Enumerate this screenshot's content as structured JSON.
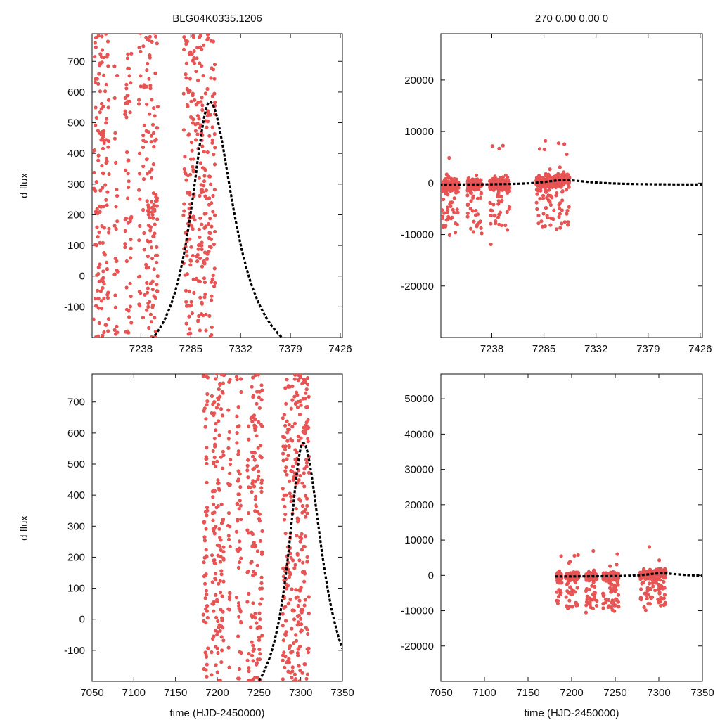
{
  "figure": {
    "title_left": "BLG04K0335.1206",
    "title_right": "270  0.00  0.00  0",
    "ylabel": "d flux",
    "xlabel": "time (HJD-2450000)",
    "point_color": "#e85454",
    "model_color": "#000000"
  },
  "chart_data": [
    {
      "type": "scatter",
      "title": "BLG04K0335.1206",
      "ylabel": "d flux",
      "xlabel": "",
      "xlim": [
        7192,
        7428
      ],
      "ylim": [
        -200,
        790
      ],
      "xticks": [
        7238,
        7285,
        7332,
        7379,
        7426
      ],
      "yticks": [
        -100,
        0,
        100,
        200,
        300,
        400,
        500,
        600,
        700
      ],
      "seasons": [
        [
          7193,
          7208
        ],
        [
          7213,
          7216
        ],
        [
          7223,
          7229
        ],
        [
          7236,
          7238
        ],
        [
          7240,
          7254
        ],
        [
          7278,
          7308
        ]
      ],
      "model": {
        "t0": 7303,
        "peak": 568,
        "tE_left": 22,
        "tE_right": 28,
        "base": -330
      }
    },
    {
      "type": "scatter",
      "title": "270  0.00  0.00  0",
      "ylabel": "",
      "xlabel": "",
      "xlim": [
        7192,
        7428
      ],
      "ylim": [
        -30000,
        29000
      ],
      "xticks": [
        7238,
        7285,
        7332,
        7379,
        7426
      ],
      "yticks": [
        -20000,
        -10000,
        0,
        10000,
        20000
      ],
      "seasons": [
        [
          7193,
          7208
        ],
        [
          7216,
          7229
        ],
        [
          7236,
          7254
        ],
        [
          7278,
          7308
        ]
      ],
      "model": {
        "t0": 7303,
        "peak": 568,
        "tE_left": 22,
        "tE_right": 28,
        "base": -330
      }
    },
    {
      "type": "scatter",
      "title": "",
      "ylabel": "d flux",
      "xlabel": "time (HJD-2450000)",
      "xlim": [
        7050,
        7350
      ],
      "ylim": [
        -200,
        790
      ],
      "xticks": [
        7050,
        7100,
        7150,
        7200,
        7250,
        7300,
        7350
      ],
      "yticks": [
        -100,
        0,
        100,
        200,
        300,
        400,
        500,
        600,
        700
      ],
      "seasons": [
        [
          7183,
          7189
        ],
        [
          7193,
          7208
        ],
        [
          7213,
          7216
        ],
        [
          7223,
          7229
        ],
        [
          7236,
          7238
        ],
        [
          7240,
          7254
        ],
        [
          7278,
          7310
        ]
      ],
      "model": {
        "t0": 7303,
        "peak": 568,
        "tE_left": 22,
        "tE_right": 28,
        "base": -330
      }
    },
    {
      "type": "scatter",
      "title": "",
      "ylabel": "",
      "xlabel": "time (HJD-2450000)",
      "xlim": [
        7050,
        7350
      ],
      "ylim": [
        -30000,
        57000
      ],
      "xticks": [
        7050,
        7100,
        7150,
        7200,
        7250,
        7300,
        7350
      ],
      "yticks": [
        -20000,
        -10000,
        0,
        10000,
        20000,
        30000,
        40000,
        50000
      ],
      "seasons": [
        [
          7183,
          7189
        ],
        [
          7193,
          7208
        ],
        [
          7216,
          7229
        ],
        [
          7236,
          7254
        ],
        [
          7278,
          7308
        ]
      ],
      "model": {
        "t0": 7303,
        "peak": 568,
        "tE_left": 22,
        "tE_right": 28,
        "base": -330
      }
    }
  ]
}
